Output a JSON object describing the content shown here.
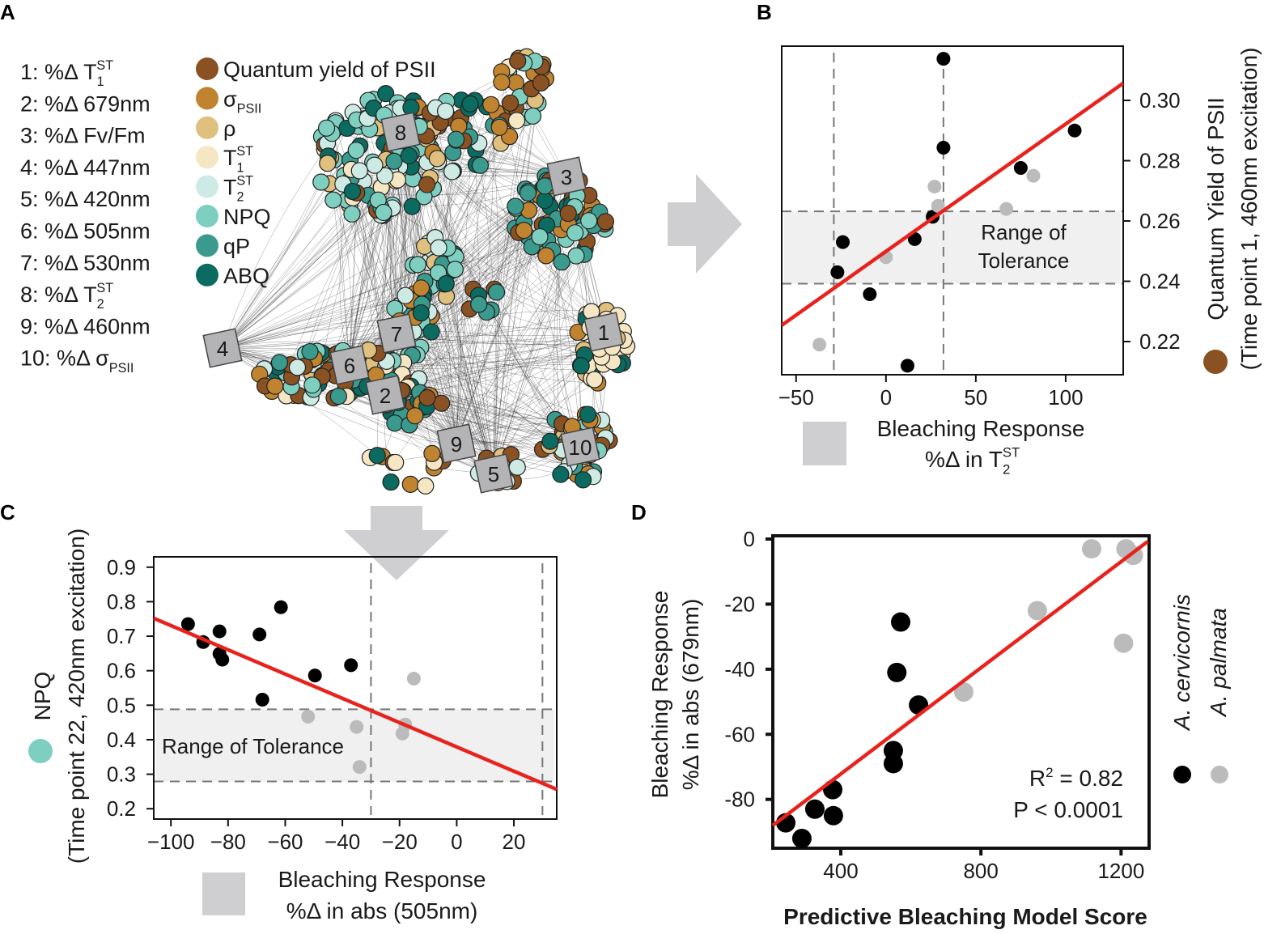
{
  "panel_a": {
    "label": "A",
    "metric_list": [
      {
        "num": "1:",
        "text": "%Δ T",
        "sub": "1",
        "sup": "ST"
      },
      {
        "num": "2:",
        "text": "%Δ 679nm",
        "sub": "",
        "sup": ""
      },
      {
        "num": "3:",
        "text": "%Δ Fv/Fm",
        "sub": "",
        "sup": ""
      },
      {
        "num": "4:",
        "text": "%Δ 447nm",
        "sub": "",
        "sup": ""
      },
      {
        "num": "5:",
        "text": "%Δ 420nm",
        "sub": "",
        "sup": ""
      },
      {
        "num": "6:",
        "text": "%Δ 505nm",
        "sub": "",
        "sup": ""
      },
      {
        "num": "7:",
        "text": "%Δ 530nm",
        "sub": "",
        "sup": ""
      },
      {
        "num": "8:",
        "text": "%Δ T",
        "sub": "2",
        "sup": "ST"
      },
      {
        "num": "9:",
        "text": "%Δ 460nm",
        "sub": "",
        "sup": ""
      },
      {
        "num": "10:",
        "text": "%Δ σ",
        "sub": "PSII",
        "sup": ""
      }
    ],
    "legend": [
      {
        "label": "Quantum yield of PSII",
        "sub": "",
        "sup": "",
        "color": "#8a5222"
      },
      {
        "label": "σ",
        "sub": "PSII",
        "sup": "",
        "color": "#c08430"
      },
      {
        "label": "ρ",
        "sub": "",
        "sup": "",
        "color": "#dfc07e"
      },
      {
        "label": "T",
        "sub": "1",
        "sup": "ST",
        "color": "#f5e6c4"
      },
      {
        "label": "T",
        "sub": "2",
        "sup": "ST",
        "color": "#cdeae4"
      },
      {
        "label": "NPQ",
        "sub": "",
        "sup": "",
        "color": "#7ecfc0"
      },
      {
        "label": "qP",
        "sub": "",
        "sup": "",
        "color": "#3a9a8e"
      },
      {
        "label": "ABQ",
        "sub": "",
        "sup": "",
        "color": "#0c6b60"
      }
    ],
    "node_boxes": [
      "1",
      "2",
      "3",
      "4",
      "5",
      "6",
      "7",
      "8",
      "9",
      "10"
    ]
  },
  "chart_data": [
    {
      "panel": "B",
      "type": "scatter",
      "xlabel": "Bleaching Response",
      "xlabel2": {
        "text": "%Δ in T",
        "sub": "2",
        "sup": "ST"
      },
      "ylabel": "Quantum Yield of PSII",
      "ylabel2": "(Time point 1, 460nm excitation)",
      "legend_color": "#8a5222",
      "xticks": [
        "−50",
        "0",
        "50",
        "100"
      ],
      "xtick_values": [
        -50,
        0,
        50,
        100
      ],
      "yticks": [
        "0.30",
        "0.28",
        "0.26",
        "0.24",
        "0.22"
      ],
      "ytick_values": [
        0.3,
        0.28,
        0.26,
        0.24,
        0.22
      ],
      "xlim": [
        -58,
        132
      ],
      "ylim": [
        0.209,
        0.318
      ],
      "tolerance_label": [
        "Range of",
        "Tolerance"
      ],
      "tolerance_y": [
        0.2392,
        0.2632
      ],
      "threshold_x": [
        -29,
        32
      ],
      "fit": {
        "x": [
          -58,
          132
        ],
        "y": [
          0.2254,
          0.3057
        ],
        "color": "#e8221c"
      },
      "series": [
        {
          "name": "A. cervicornis",
          "color": "#000000",
          "x": [
            32,
            32,
            105,
            75,
            26,
            16,
            -24,
            -27,
            -9,
            12
          ],
          "y": [
            0.3138,
            0.2843,
            0.29,
            0.2776,
            0.2614,
            0.254,
            0.253,
            0.243,
            0.2357,
            0.212
          ]
        },
        {
          "name": "A. palmata",
          "color": "#bbbbbb",
          "x": [
            27,
            29,
            67,
            82,
            0,
            -37
          ],
          "y": [
            0.2714,
            0.265,
            0.264,
            0.275,
            0.248,
            0.219
          ]
        }
      ]
    },
    {
      "panel": "C",
      "type": "scatter",
      "xlabel": "Bleaching Response",
      "xlabel2": "%Δ in abs (505nm)",
      "ylabel": "NPQ",
      "ylabel2": "(Time point 22, 420nm excitation)",
      "legend_color": "#7ecfc0",
      "xticks": [
        "−100",
        "−80",
        "−60",
        "−40",
        "−20",
        "0",
        "20"
      ],
      "xtick_values": [
        -100,
        -80,
        -60,
        -40,
        -20,
        0,
        20
      ],
      "yticks": [
        "0.9",
        "0.8",
        "0.7",
        "0.6",
        "0.5",
        "0.4",
        "0.3",
        "0.2"
      ],
      "ytick_values": [
        0.9,
        0.8,
        0.7,
        0.6,
        0.5,
        0.4,
        0.3,
        0.2
      ],
      "xlim": [
        -106,
        35
      ],
      "ylim": [
        0.17,
        0.93
      ],
      "tolerance_label": [
        "Range of Tolerance"
      ],
      "tolerance_y": [
        0.279,
        0.488
      ],
      "threshold_x": [
        -30,
        30
      ],
      "fit": {
        "x": [
          -106,
          35
        ],
        "y": [
          0.752,
          0.256
        ],
        "color": "#e8221c"
      },
      "series": [
        {
          "name": "A. cervicornis",
          "color": "#000000",
          "x": [
            -94,
            -88.7,
            -83,
            -83,
            -82,
            -69,
            -61.5,
            -68,
            -49.6,
            -37
          ],
          "y": [
            0.735,
            0.683,
            0.714,
            0.649,
            0.632,
            0.705,
            0.784,
            0.516,
            0.586,
            0.616
          ]
        },
        {
          "name": "A. palmata",
          "color": "#bbbbbb",
          "x": [
            -52,
            -35,
            -34,
            -15,
            -19,
            -18
          ],
          "y": [
            0.467,
            0.437,
            0.321,
            0.577,
            0.418,
            0.444
          ]
        }
      ]
    },
    {
      "panel": "D",
      "type": "scatter",
      "xlabel": "Predictive Bleaching Model Score",
      "ylabel": "Bleaching Response",
      "ylabel2": "%Δ in abs (679nm)",
      "xticks": [
        "400",
        "800",
        "1200"
      ],
      "xtick_values": [
        400,
        800,
        1200
      ],
      "yticks": [
        "0",
        "-20",
        "-40",
        "-60",
        "-80"
      ],
      "ytick_values": [
        0,
        -20,
        -40,
        -60,
        -80
      ],
      "xlim": [
        206,
        1280
      ],
      "ylim": [
        -95,
        1
      ],
      "stats": {
        "r2_label": "R",
        "r2_sup": "2",
        "r2_value": " = 0.82",
        "p": "P < 0.0001"
      },
      "fit": {
        "x": [
          206,
          1276
        ],
        "y": [
          -88,
          -0.75
        ],
        "color": "#e8221c"
      },
      "series": [
        {
          "name": "A. cervicornis",
          "color": "#000000",
          "x": [
            243,
            289,
            326,
            377,
            379,
            550,
            550,
            560,
            571,
            622
          ],
          "y": [
            -87.2,
            -92,
            -83,
            -77,
            -85,
            -65,
            -69,
            -41,
            -25.5,
            -51
          ]
        },
        {
          "name": "A. palmata",
          "color": "#bbbbbb",
          "x": [
            751,
            961,
            1116,
            1214,
            1235,
            1207
          ],
          "y": [
            -47,
            -22,
            -3,
            -3,
            -5,
            -32
          ]
        }
      ]
    }
  ],
  "panel_labels": {
    "b": "B",
    "c": "C",
    "d": "D"
  }
}
